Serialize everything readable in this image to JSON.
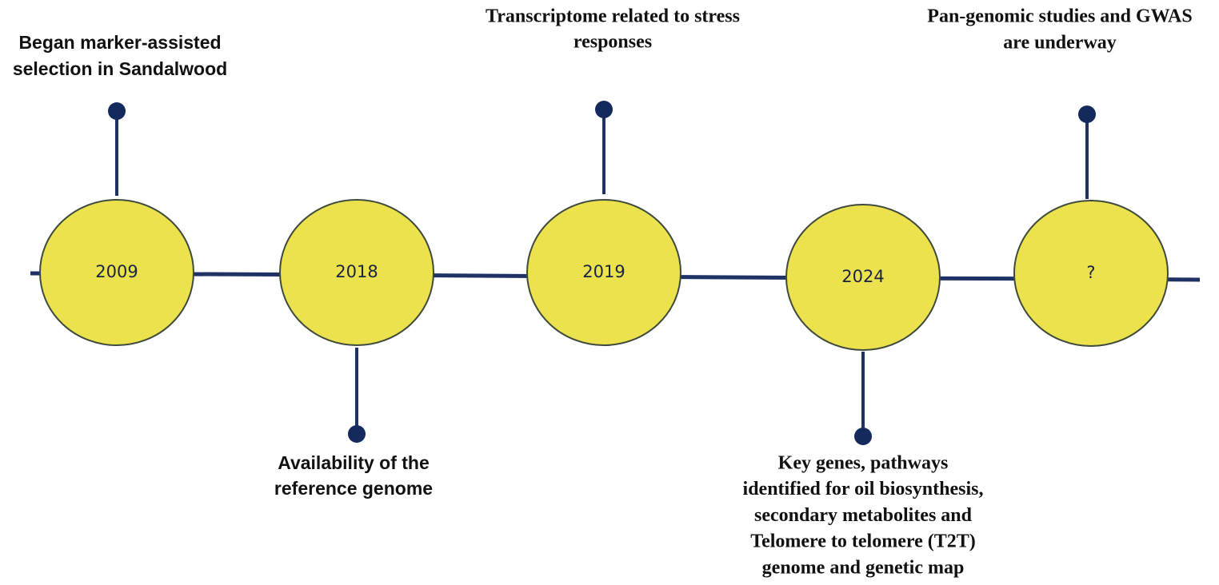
{
  "nodes": [
    {
      "year": "2009",
      "lines": [
        "Began marker-assisted",
        "selection in Sandalwood"
      ]
    },
    {
      "year": "2018",
      "lines": [
        "Availability of the",
        "reference genome"
      ]
    },
    {
      "year": "2019",
      "lines": [
        "Transcriptome related to stress",
        "responses"
      ]
    },
    {
      "year": "2024",
      "lines": [
        "Key genes, pathways",
        "identified for oil biosynthesis,",
        "secondary metabolites and",
        "Telomere to telomere (T2T)",
        "genome and genetic map"
      ]
    },
    {
      "year": "?",
      "lines": [
        "Pan-genomic studies and GWAS",
        "are underway"
      ]
    }
  ]
}
